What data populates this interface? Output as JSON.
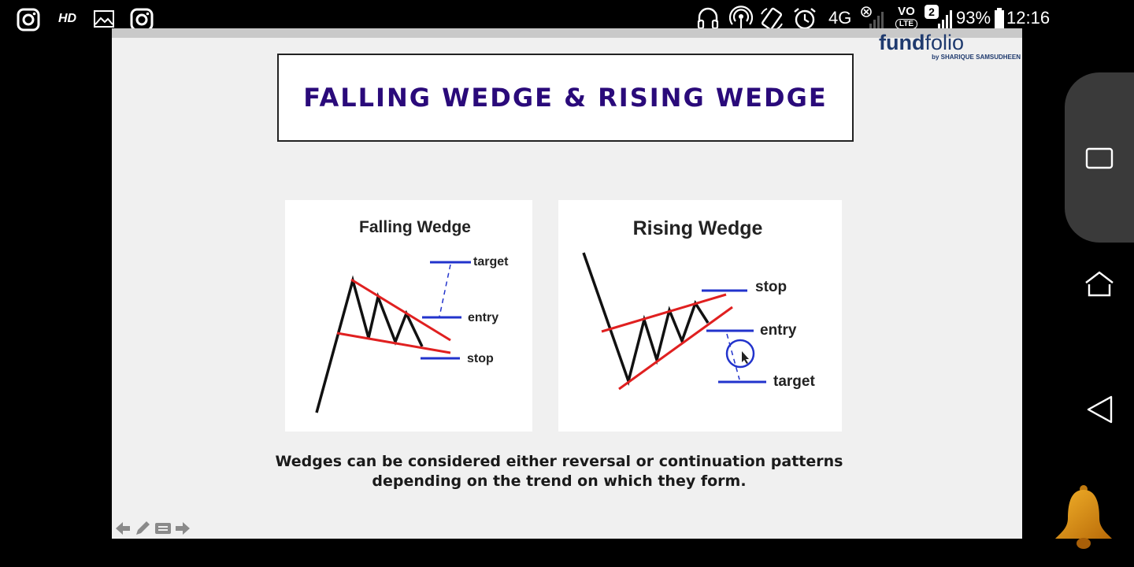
{
  "status_bar": {
    "hd_label": "HD",
    "network": "4G",
    "volte": "VO",
    "lte": "LTE",
    "sim_badge": "2",
    "battery": "93%",
    "time": "12:16",
    "icons": [
      "instagram-icon",
      "hd-icon",
      "image-icon",
      "instagram-icon",
      "headset-icon",
      "hotspot-icon",
      "rotate-icon",
      "alarm-icon",
      "signal-icon",
      "battery-icon"
    ]
  },
  "brand": {
    "name_bold": "fund",
    "name_light": "folio",
    "byline": "by SHARIQUE SAMSUDHEEN"
  },
  "slide": {
    "title": "FALLING WEDGE & RISING WEDGE",
    "caption_line1": "Wedges can be considered either reversal or continuation patterns",
    "caption_line2": "depending on the trend on which they form."
  },
  "falling_wedge": {
    "title": "Falling Wedge",
    "labels": {
      "target": "target",
      "entry": "entry",
      "stop": "stop"
    }
  },
  "rising_wedge": {
    "title": "Rising Wedge",
    "labels": {
      "stop": "stop",
      "entry": "entry",
      "target": "target"
    }
  },
  "colors": {
    "trendline": "#e02020",
    "level": "#2233cc",
    "price": "#111111",
    "title": "#2a0a7a"
  }
}
